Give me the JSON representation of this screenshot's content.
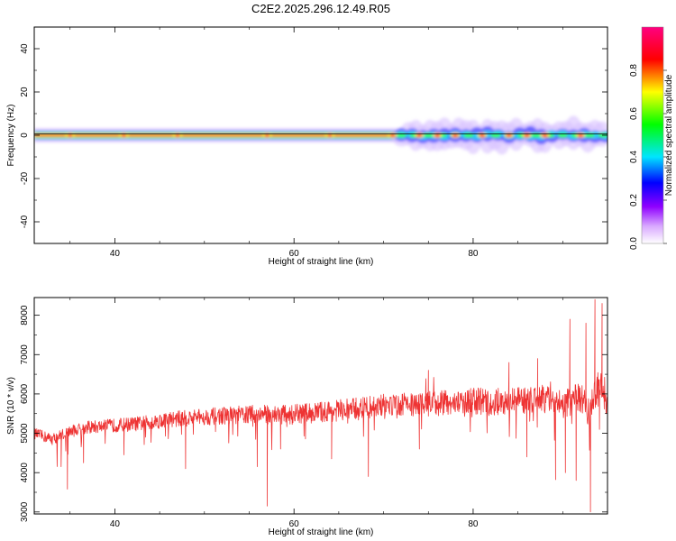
{
  "title": "C2E2.2025.296.12.49.R05",
  "chart_data": [
    {
      "type": "heatmap",
      "xlabel": "Height of straight line (km)",
      "ylabel": "Frequency (Hz)",
      "xlim": [
        31,
        95
      ],
      "ylim": [
        -50,
        50
      ],
      "xticks": [
        40,
        60,
        80
      ],
      "yticks": [
        -40,
        -20,
        0,
        20,
        40
      ],
      "band_center_hz": 0,
      "strong_band_km": [
        31,
        72
      ],
      "fragmented_band_km": [
        72,
        95
      ],
      "peak_heights_km": [
        35,
        41,
        47,
        57,
        64,
        71,
        74,
        76,
        78,
        81,
        84,
        86,
        88,
        92
      ]
    },
    {
      "type": "colorbar",
      "label": "Normalized spectral amplitude",
      "range": [
        0,
        1
      ],
      "ticks": [
        "0.0",
        "0.2",
        "0.4",
        "0.6",
        "0.8"
      ],
      "colormap": [
        "#ffffff",
        "#8f00ff",
        "#0000ff",
        "#00e5ff",
        "#00ff00",
        "#ffff00",
        "#ff0000",
        "#ff007f"
      ]
    },
    {
      "type": "line",
      "xlabel": "Height of straight line (km)",
      "ylabel": "SNR (10 * v/v)",
      "xlim": [
        31,
        95
      ],
      "ylim": [
        2950,
        8450
      ],
      "xticks": [
        40,
        60,
        80
      ],
      "yticks": [
        3000,
        4000,
        5000,
        6000,
        7000,
        8000
      ],
      "color": "#ee3333",
      "x": [
        31,
        33,
        35,
        37,
        40,
        43,
        46,
        50,
        55,
        60,
        65,
        70,
        75,
        80,
        84,
        88,
        90,
        92,
        93,
        94,
        95
      ],
      "y": [
        5000,
        4850,
        5050,
        5150,
        5200,
        5250,
        5350,
        5420,
        5480,
        5480,
        5580,
        5700,
        5750,
        5820,
        5800,
        5880,
        5750,
        5900,
        5500,
        6300,
        5700
      ],
      "spikes": [
        {
          "x": 34.0,
          "y": 4150
        },
        {
          "x": 34.7,
          "y": 3580
        },
        {
          "x": 36.5,
          "y": 4250
        },
        {
          "x": 41.0,
          "y": 4450
        },
        {
          "x": 47.9,
          "y": 4100
        },
        {
          "x": 55.9,
          "y": 4150
        },
        {
          "x": 57.0,
          "y": 3150
        },
        {
          "x": 58.5,
          "y": 4600
        },
        {
          "x": 64.2,
          "y": 4350
        },
        {
          "x": 68.3,
          "y": 3900
        },
        {
          "x": 74.0,
          "y": 4600
        },
        {
          "x": 86.0,
          "y": 4400
        },
        {
          "x": 89.2,
          "y": 3820
        },
        {
          "x": 90.3,
          "y": 4000
        },
        {
          "x": 91.5,
          "y": 3800
        },
        {
          "x": 93.1,
          "y": 3000
        },
        {
          "x": 94.1,
          "y": 5100
        },
        {
          "x": 75.0,
          "y": 6600
        },
        {
          "x": 84.0,
          "y": 6800
        },
        {
          "x": 87.2,
          "y": 6900
        },
        {
          "x": 90.8,
          "y": 7900
        },
        {
          "x": 92.6,
          "y": 7800
        },
        {
          "x": 93.6,
          "y": 8400
        },
        {
          "x": 94.4,
          "y": 8300
        }
      ]
    }
  ]
}
